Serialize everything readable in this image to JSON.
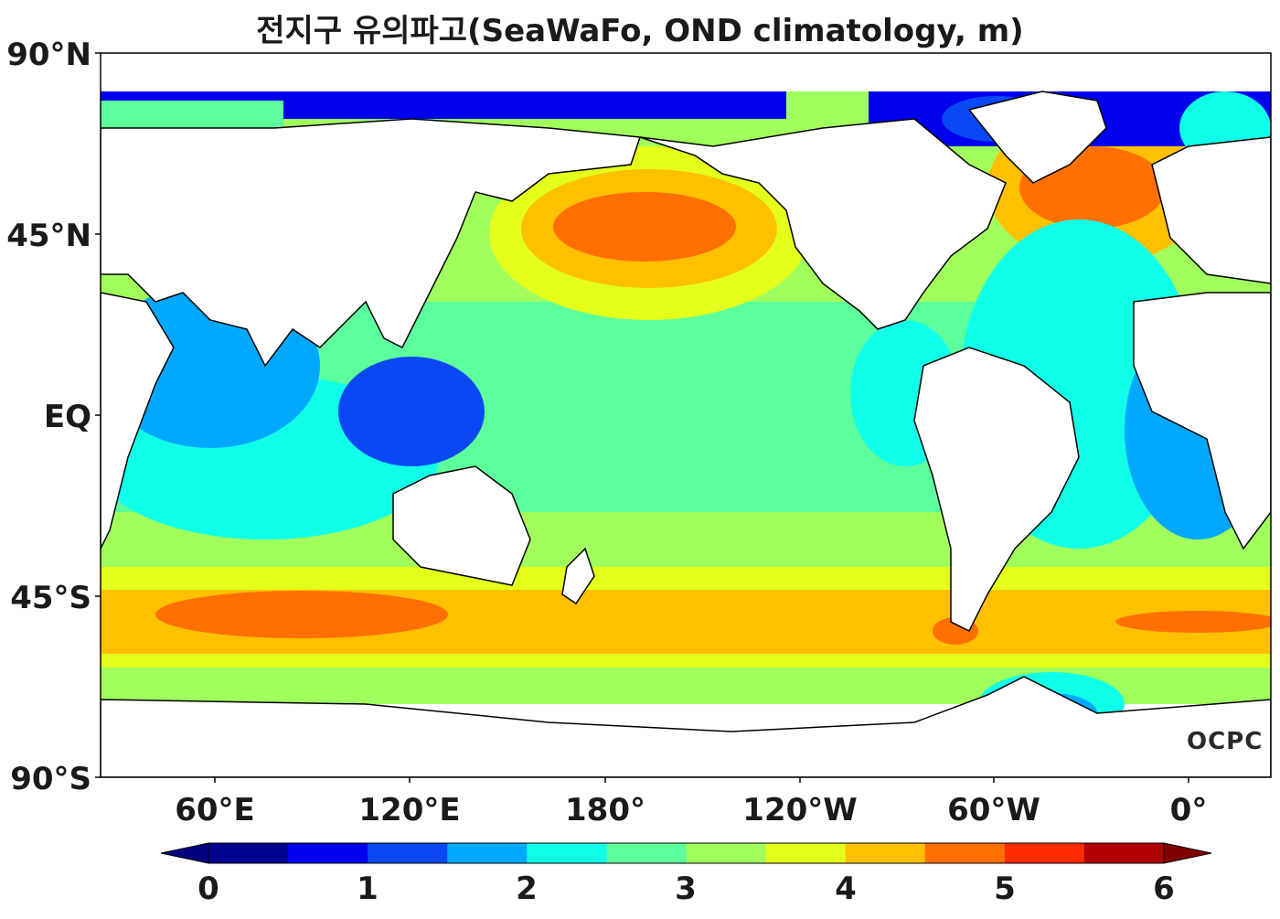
{
  "title": "전지구 유의파고(SeaWaFo, OND climatology, m)",
  "watermark": "OCPC",
  "axes": {
    "lat_labels": [
      "90°N",
      "45°N",
      "EQ",
      "45°S",
      "90°S"
    ],
    "lon_labels": [
      "60°E",
      "120°E",
      "180°",
      "120°W",
      "60°W",
      "0°"
    ]
  },
  "colorbar": {
    "ticks": [
      "0",
      "1",
      "2",
      "3",
      "4",
      "5",
      "6"
    ],
    "colors": [
      "#00008f",
      "#0000ee",
      "#0a48f5",
      "#00a8ff",
      "#10ffe8",
      "#5cff9c",
      "#a0ff5c",
      "#e4ff1a",
      "#ffc000",
      "#ff7000",
      "#ff2c00",
      "#b00000"
    ],
    "extend": "both",
    "under_color": "#000080",
    "over_color": "#800000"
  },
  "map": {
    "land_color": "#ffffff",
    "coastline_color": "#000000",
    "lon_range": "25°E to 20°E (Pacific-centred)",
    "lat_range": "90°S to 90°N"
  }
}
